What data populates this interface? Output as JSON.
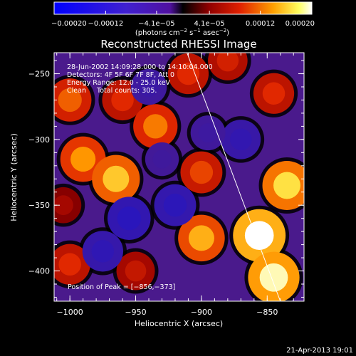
{
  "chart_data": {
    "type": "heatmap",
    "title": "Reconstructed RHESSI Image",
    "xlabel": "Heliocentric X (arcsec)",
    "ylabel": "Heliocentric Y (arcsec)",
    "xlim": [
      -1012,
      -822
    ],
    "ylim": [
      -423,
      -234
    ],
    "x_ticks": [
      -1000,
      -950,
      -900,
      -850
    ],
    "y_ticks": [
      -250,
      -300,
      -350,
      -400
    ],
    "x_tick_labels": [
      "−1000",
      "−950",
      "−900",
      "−850"
    ],
    "y_tick_labels": [
      "−250",
      "−300",
      "−350",
      "−400"
    ],
    "colorbar": {
      "range": [
        -0.0002,
        0.0002
      ],
      "ticks": [
        -0.0002,
        -0.00012,
        -4.1e-05,
        4.1e-05,
        0.00012,
        0.0002
      ],
      "tick_labels": [
        "−0.00020",
        "−0.00012",
        "−4.1e−05",
        "4.1e−05",
        "0.00012",
        "0.00020"
      ],
      "units_text": "(photons cm",
      "units_exp1": "−2",
      "units_mid": " s",
      "units_exp2": "−1",
      "units_tail": " asec",
      "units_exp3": "−2",
      "units_close": ")"
    },
    "annotations": [
      "28-Jun-2002 14:09:28.000 to 14:10:04.000",
      "Detectors: 4F 5F 6F 7F 8F, Att 0",
      "Energy Range: 12.0 - 25.0 keV",
      "Clean     Total counts: 305."
    ],
    "peak_text": "Position of Peak = [−856,−373]",
    "peak": [
      -856,
      -373
    ],
    "limb_line": [
      [
        -911,
        -234
      ],
      [
        -840,
        -423
      ]
    ],
    "blobs": [
      {
        "x": -1000,
        "y": -270,
        "v": 0.00012
      },
      {
        "x": -960,
        "y": -270,
        "v": 0.0001
      },
      {
        "x": -935,
        "y": -290,
        "v": 0.00013
      },
      {
        "x": -910,
        "y": -250,
        "v": 0.0001
      },
      {
        "x": -880,
        "y": -240,
        "v": 9e-05
      },
      {
        "x": -990,
        "y": -315,
        "v": 0.00014
      },
      {
        "x": -965,
        "y": -330,
        "v": 0.00016
      },
      {
        "x": -900,
        "y": -325,
        "v": 0.00011
      },
      {
        "x": -845,
        "y": -265,
        "v": 0.0001
      },
      {
        "x": -835,
        "y": -335,
        "v": 0.00017
      },
      {
        "x": -900,
        "y": -375,
        "v": 0.00015
      },
      {
        "x": -856,
        "y": -373,
        "v": 0.0002
      },
      {
        "x": -845,
        "y": -405,
        "v": 0.00019
      },
      {
        "x": -1000,
        "y": -395,
        "v": 0.0001
      },
      {
        "x": -950,
        "y": -400,
        "v": 8e-05
      },
      {
        "x": -1005,
        "y": -350,
        "v": 6e-05
      },
      {
        "x": -955,
        "y": -360,
        "v": -0.00012
      },
      {
        "x": -975,
        "y": -385,
        "v": -0.0001
      },
      {
        "x": -920,
        "y": -350,
        "v": -0.00011
      },
      {
        "x": -940,
        "y": -260,
        "v": -6e-05
      },
      {
        "x": -870,
        "y": -300,
        "v": -9e-05
      },
      {
        "x": -895,
        "y": -295,
        "v": -5e-05
      },
      {
        "x": -930,
        "y": -315,
        "v": -4e-05
      }
    ]
  },
  "footer": {
    "date": "21-Apr-2013 19:01"
  }
}
